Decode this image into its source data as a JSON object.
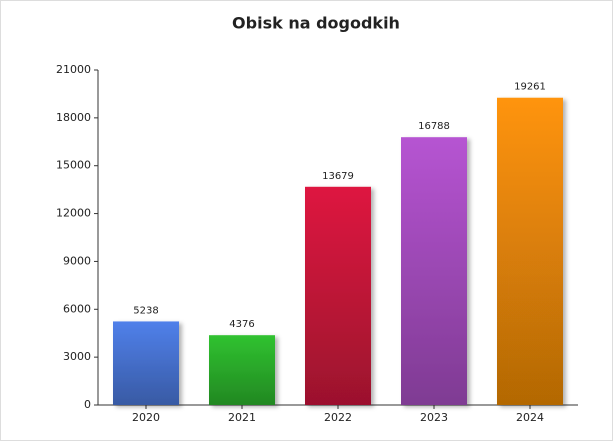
{
  "chart_data": {
    "type": "bar",
    "title": "Obisk na dogodkih",
    "categories": [
      "2020",
      "2021",
      "2022",
      "2023",
      "2024"
    ],
    "values": [
      5238,
      4376,
      13679,
      16788,
      19261
    ],
    "colors": [
      "#5080ea",
      "#30c230",
      "#de1840",
      "#b654d2",
      "#ff9408"
    ],
    "ylim": [
      0,
      21000
    ],
    "yticks": [
      0,
      3000,
      6000,
      9000,
      12000,
      15000,
      18000,
      21000
    ],
    "grid": false
  }
}
